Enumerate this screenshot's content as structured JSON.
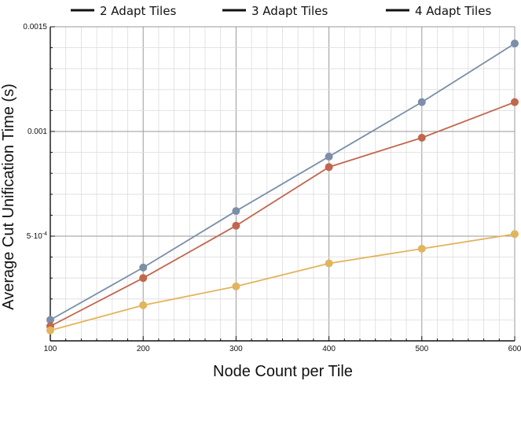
{
  "chart_data": {
    "type": "line",
    "xlabel": "Node Count per Tile",
    "ylabel": "Average Cut Unification Time (s)",
    "x": [
      100,
      200,
      300,
      400,
      500,
      600
    ],
    "x_tick_labels": [
      "100",
      "200",
      "300",
      "400",
      "500",
      "600"
    ],
    "xlim": [
      100,
      600
    ],
    "ylim": [
      0.0,
      0.0015
    ],
    "y_ticks": [
      {
        "value": 0.0015,
        "label": "0.0015"
      },
      {
        "value": 0.001,
        "label": "0.001"
      },
      {
        "value": 0.0005,
        "label": "5·10",
        "exp": "-4"
      }
    ],
    "grid": true,
    "legend_placement": "top",
    "series": [
      {
        "name": "2 Adapt Tiles",
        "color": "#7b8fa8",
        "values": [
          0.0001,
          0.00035,
          0.00062,
          0.00088,
          0.00114,
          0.00142
        ]
      },
      {
        "name": "3 Adapt Tiles",
        "color": "#c2664e",
        "values": [
          7e-05,
          0.0003,
          0.00055,
          0.00083,
          0.00097,
          0.00114
        ]
      },
      {
        "name": "4 Adapt Tiles",
        "color": "#e2b45c",
        "values": [
          5e-05,
          0.00017,
          0.00026,
          0.00037,
          0.00044,
          0.00051
        ]
      }
    ]
  }
}
